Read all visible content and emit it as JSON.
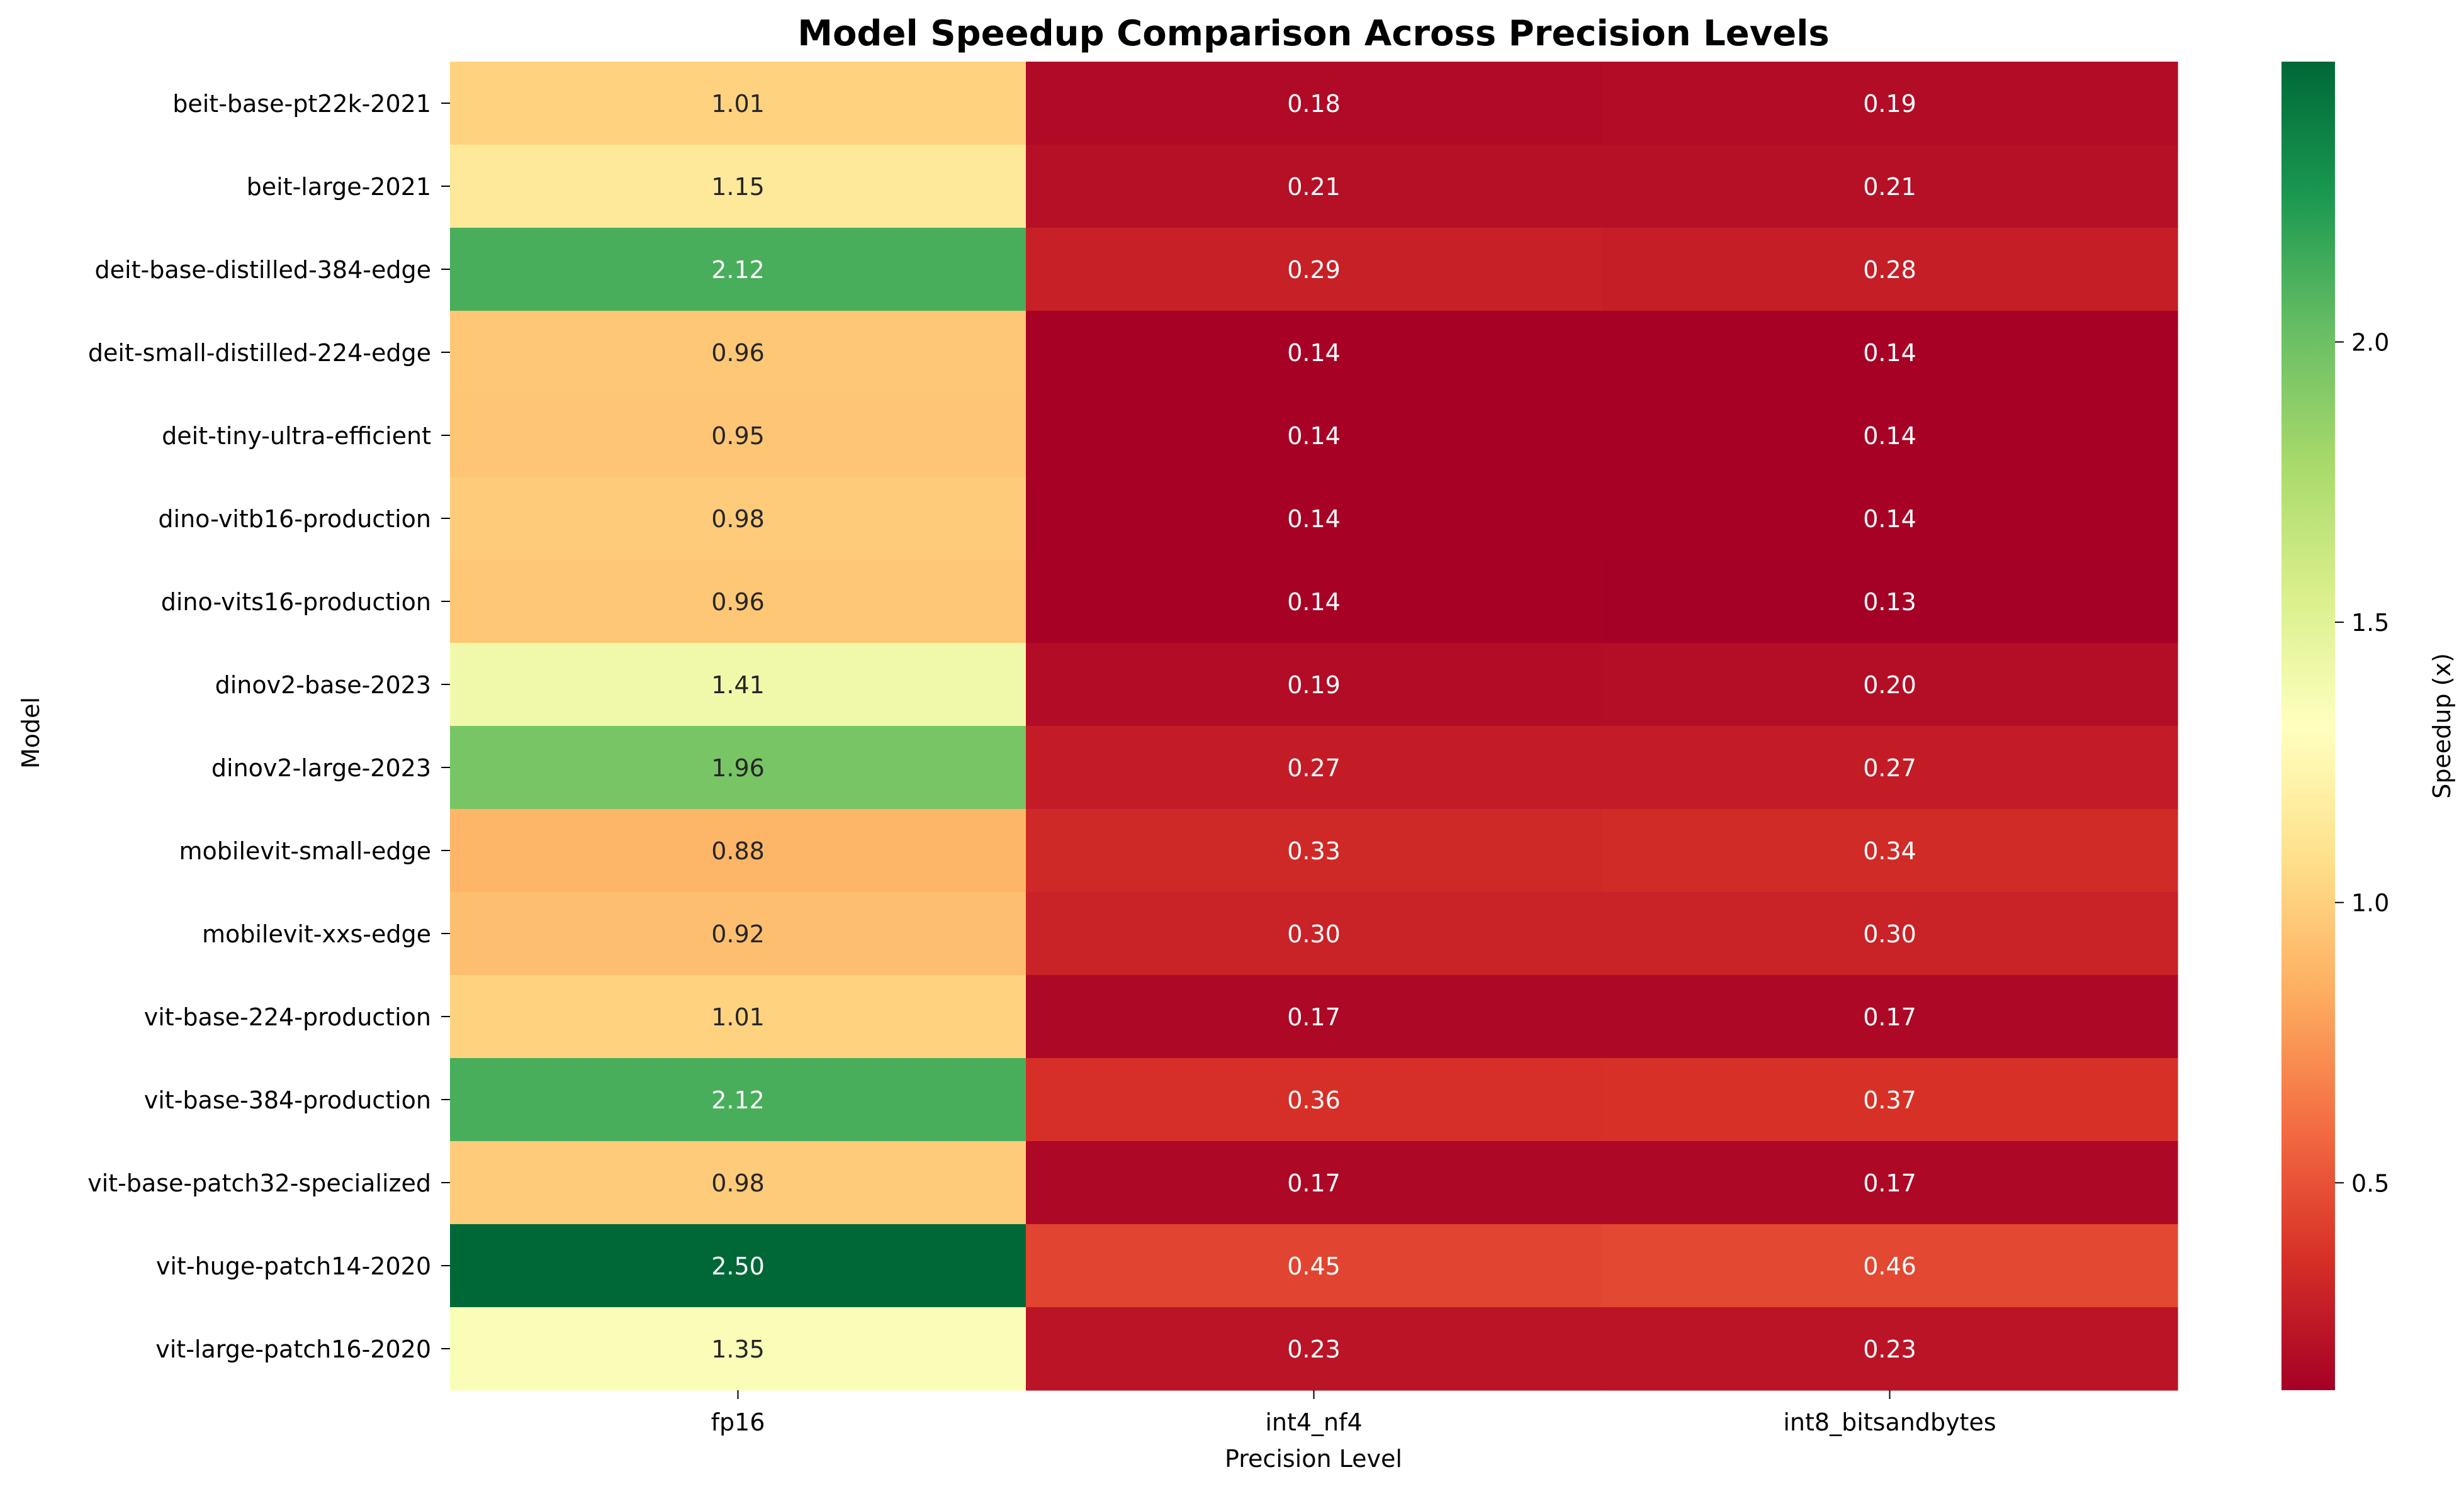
{
  "chart_data": {
    "type": "heatmap",
    "title": "Model Speedup Comparison Across Precision Levels",
    "xlabel": "Precision Level",
    "ylabel": "Model",
    "colorbar_label": "Speedup (x)",
    "colormap": "RdYlGn",
    "vmin": 0.13,
    "vmax": 2.5,
    "colorbar_ticks": [
      {
        "value": 0.5,
        "label": "0.5"
      },
      {
        "value": 1.0,
        "label": "1.0"
      },
      {
        "value": 1.5,
        "label": "1.5"
      },
      {
        "value": 2.0,
        "label": "2.0"
      }
    ],
    "columns": [
      "fp16",
      "int4_nf4",
      "int8_bitsandbytes"
    ],
    "rows": [
      "beit-base-pt22k-2021",
      "beit-large-2021",
      "deit-base-distilled-384-edge",
      "deit-small-distilled-224-edge",
      "deit-tiny-ultra-efficient",
      "dino-vitb16-production",
      "dino-vits16-production",
      "dinov2-base-2023",
      "dinov2-large-2023",
      "mobilevit-small-edge",
      "mobilevit-xxs-edge",
      "vit-base-224-production",
      "vit-base-384-production",
      "vit-base-patch32-specialized",
      "vit-huge-patch14-2020",
      "vit-large-patch16-2020"
    ],
    "values": [
      [
        1.01,
        0.18,
        0.19
      ],
      [
        1.15,
        0.21,
        0.21
      ],
      [
        2.12,
        0.29,
        0.28
      ],
      [
        0.96,
        0.14,
        0.14
      ],
      [
        0.95,
        0.14,
        0.14
      ],
      [
        0.98,
        0.14,
        0.14
      ],
      [
        0.96,
        0.14,
        0.13
      ],
      [
        1.41,
        0.19,
        0.2
      ],
      [
        1.96,
        0.27,
        0.27
      ],
      [
        0.88,
        0.33,
        0.34
      ],
      [
        0.92,
        0.3,
        0.3
      ],
      [
        1.01,
        0.17,
        0.17
      ],
      [
        2.12,
        0.36,
        0.37
      ],
      [
        0.98,
        0.17,
        0.17
      ],
      [
        2.5,
        0.45,
        0.46
      ],
      [
        1.35,
        0.23,
        0.23
      ]
    ]
  }
}
